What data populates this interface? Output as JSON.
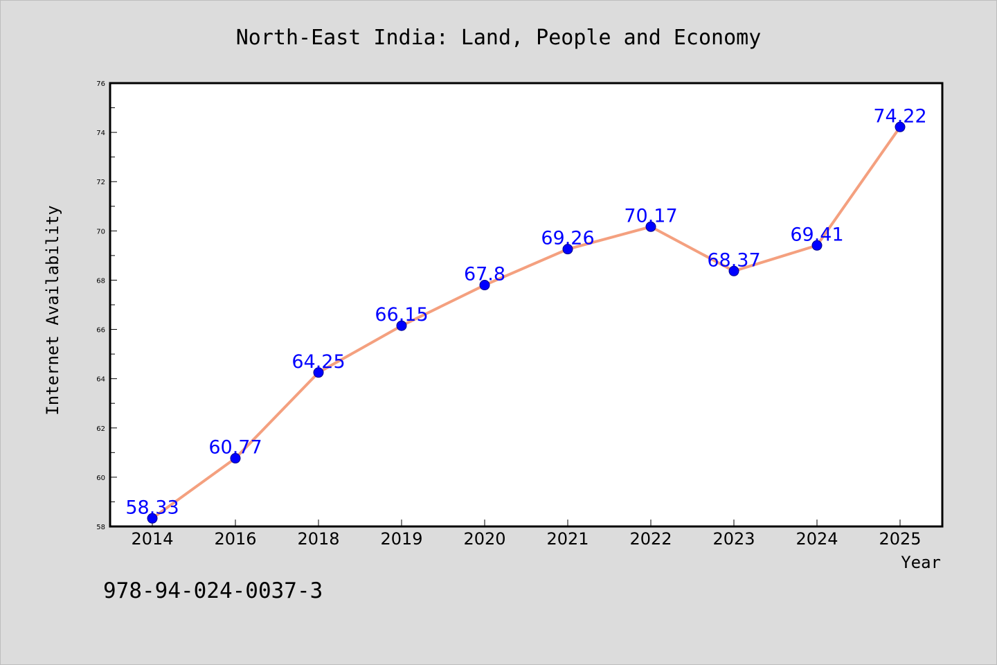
{
  "chart_data": {
    "type": "line",
    "title": "North-East India: Land, People and Economy",
    "xlabel": "Year",
    "ylabel": "Internet Availability",
    "categories": [
      "2014",
      "2016",
      "2018",
      "2019",
      "2020",
      "2021",
      "2022",
      "2023",
      "2024",
      "2025"
    ],
    "series": [
      {
        "values": [
          58.33,
          60.77,
          64.25,
          66.15,
          67.8,
          69.26,
          70.17,
          68.37,
          69.41,
          74.22
        ],
        "labels": [
          "58.33",
          "60.77",
          "64.25",
          "66.15",
          "67.8",
          "69.26",
          "70.17",
          "68.37",
          "69.41",
          "74.22"
        ]
      }
    ],
    "ylim": [
      58,
      76
    ],
    "yticks": [
      "58",
      "60",
      "62",
      "64",
      "66",
      "68",
      "70",
      "72",
      "74",
      "76"
    ],
    "grid": false,
    "colors": {
      "line": "#f4a07f",
      "marker": "#0000ff",
      "data_label": "#0000ff",
      "background": "#dcdcdc",
      "plot_background": "#ffffff"
    }
  },
  "footer_text": "978-94-024-0037-3"
}
